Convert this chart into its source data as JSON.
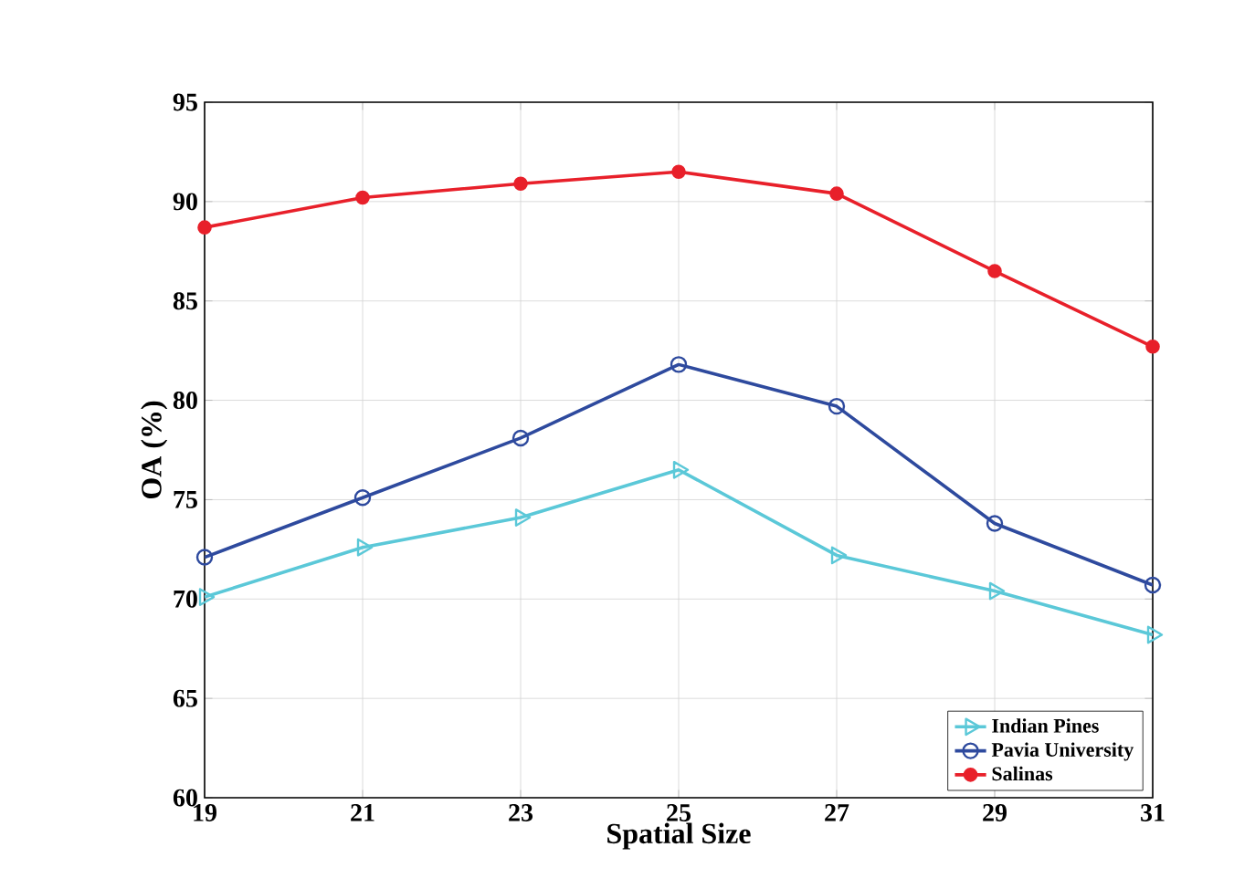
{
  "chart_data": {
    "type": "line",
    "xlabel": "Spatial Size",
    "ylabel": "OA (%)",
    "x": [
      19,
      21,
      23,
      25,
      27,
      29,
      31
    ],
    "series": [
      {
        "name": "Indian Pines",
        "color": "#5bc8d8",
        "marker": "triangle",
        "values": [
          70.1,
          72.6,
          74.1,
          76.5,
          72.2,
          70.4,
          68.2
        ]
      },
      {
        "name": "Pavia University",
        "color": "#2e4a9e",
        "marker": "circle",
        "values": [
          72.1,
          75.1,
          78.1,
          81.8,
          79.7,
          73.8,
          70.7
        ]
      },
      {
        "name": "Salinas",
        "color": "#e8202a",
        "marker": "circle",
        "values": [
          88.7,
          90.2,
          90.9,
          91.5,
          90.4,
          86.5,
          82.7
        ]
      }
    ],
    "xlim": [
      19,
      31
    ],
    "xticks": [
      19,
      21,
      23,
      25,
      27,
      29,
      31
    ],
    "ylim": [
      60,
      95
    ],
    "yticks": [
      60,
      65,
      70,
      75,
      80,
      85,
      90,
      95
    ],
    "grid": true,
    "legend": "bottom right",
    "line_style": "solid"
  }
}
